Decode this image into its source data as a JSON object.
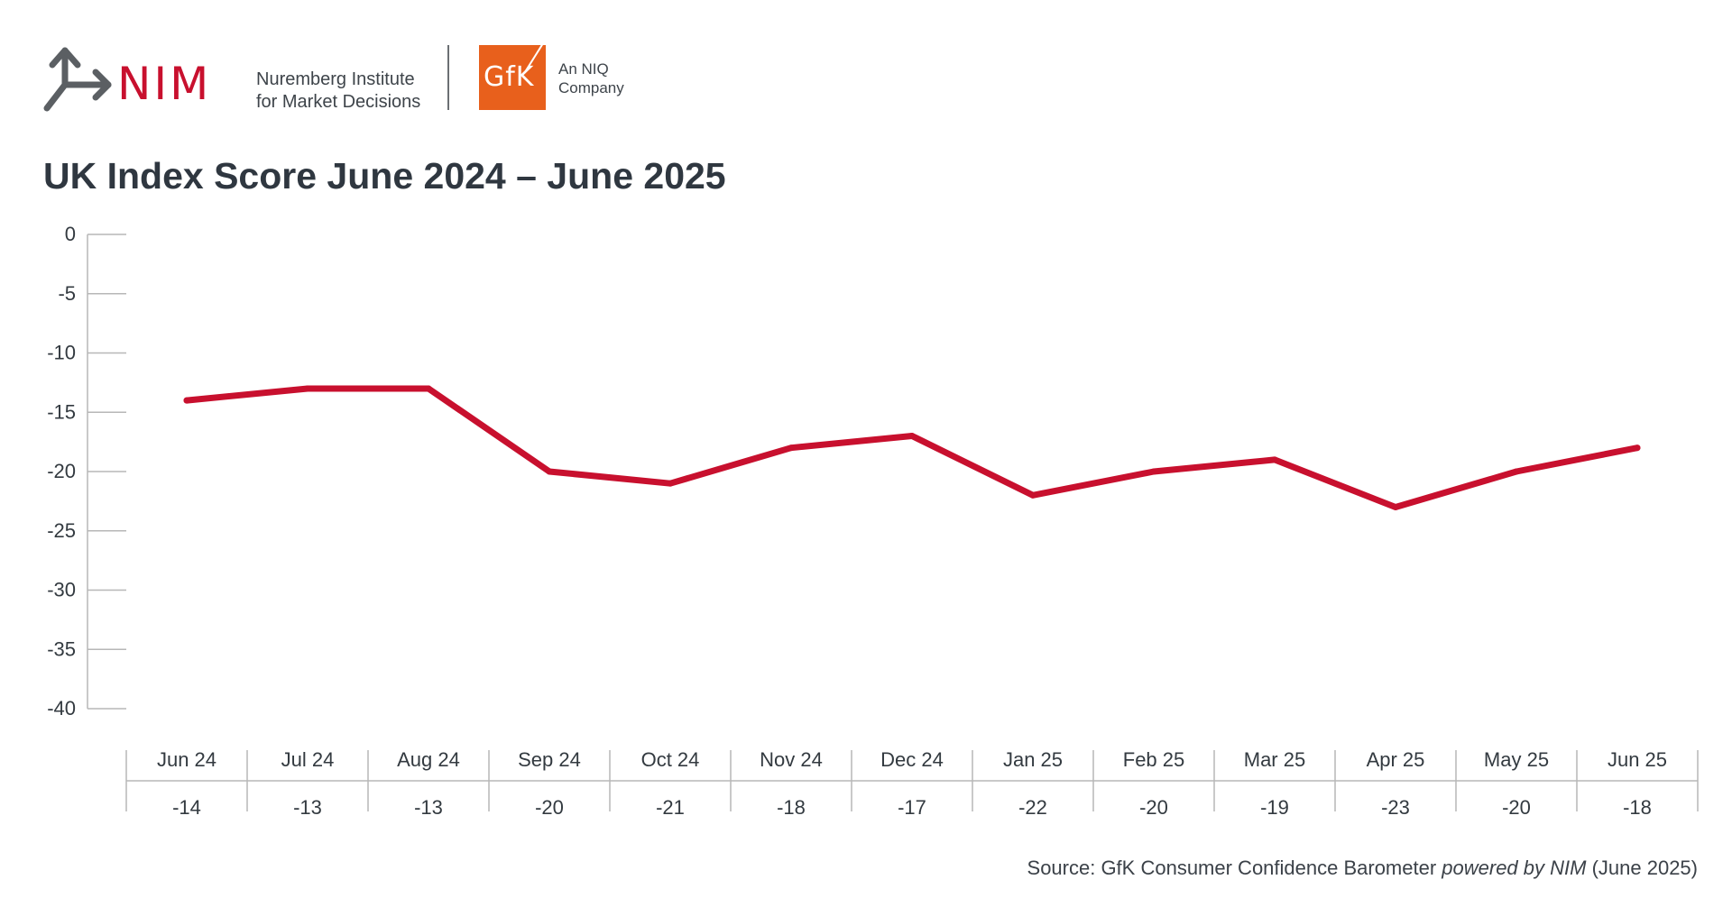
{
  "brand": {
    "nim_wordmark": "NIM",
    "nim_name_line1": "Nuremberg Institute",
    "nim_name_line2": "for Market Decisions",
    "gfk_wordmark": "GfK",
    "gfk_tag_line1": "An NIQ",
    "gfk_tag_line2": "Company"
  },
  "colors": {
    "line": "#c8102e",
    "nim_red": "#c8102e",
    "gfk_orange": "#e8601c",
    "axis": "#b7b7b7",
    "text": "#333a40"
  },
  "source": {
    "prefix": "Source: GfK Consumer Confidence Barometer ",
    "italic": "powered by NIM",
    "suffix": " (June 2025)"
  },
  "chart_data": {
    "type": "line",
    "title": "UK Index Score June 2024 – June 2025",
    "categories": [
      "Jun 24",
      "Jul 24",
      "Aug 24",
      "Sep 24",
      "Oct 24",
      "Nov 24",
      "Dec 24",
      "Jan 25",
      "Feb 25",
      "Mar 25",
      "Apr 25",
      "May 25",
      "Jun 25"
    ],
    "series": [
      {
        "values": [
          -14,
          -13,
          -13,
          -20,
          -21,
          -18,
          -17,
          -22,
          -20,
          -19,
          -23,
          -20,
          -18
        ]
      }
    ],
    "data_labels": [
      "-14",
      "-13",
      "-13",
      "-20",
      "-21",
      "-18",
      "-17",
      "-22",
      "-20",
      "-19",
      "-23",
      "-20",
      "-18"
    ],
    "ylim": [
      -40,
      0
    ],
    "yticks": [
      "0",
      "-5",
      "-10",
      "-15",
      "-20",
      "-25",
      "-30",
      "-35",
      "-40"
    ],
    "grid": false,
    "legend": "none",
    "table_below": true
  }
}
